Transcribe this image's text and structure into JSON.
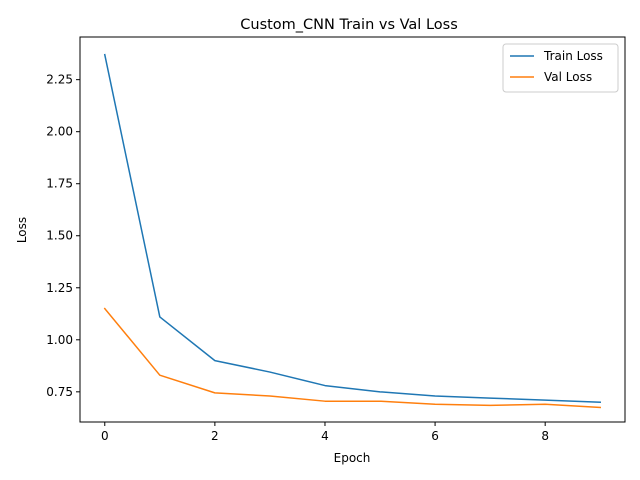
{
  "chart_data": {
    "type": "line",
    "title": "Custom_CNN Train vs Val Loss",
    "xlabel": "Epoch",
    "ylabel": "Loss",
    "xlim": [
      -0.45,
      9.45
    ],
    "ylim": [
      0.605,
      2.455
    ],
    "xticks": [
      0,
      2,
      4,
      6,
      8
    ],
    "yticks": [
      0.75,
      1.0,
      1.25,
      1.5,
      1.75,
      2.0,
      2.25
    ],
    "ytick_labels": [
      "0.75",
      "1.00",
      "1.25",
      "1.50",
      "1.75",
      "2.00",
      "2.25"
    ],
    "grid": false,
    "legend_position": "top-right",
    "x": [
      0,
      1,
      2,
      3,
      4,
      5,
      6,
      7,
      8,
      9
    ],
    "series": [
      {
        "name": "Train Loss",
        "color": "#1f77b4",
        "values": [
          2.37,
          1.11,
          0.9,
          0.845,
          0.78,
          0.75,
          0.73,
          0.72,
          0.71,
          0.7
        ]
      },
      {
        "name": "Val Loss",
        "color": "#ff7f0e",
        "values": [
          1.15,
          0.83,
          0.745,
          0.73,
          0.705,
          0.705,
          0.69,
          0.685,
          0.69,
          0.675
        ]
      }
    ]
  }
}
